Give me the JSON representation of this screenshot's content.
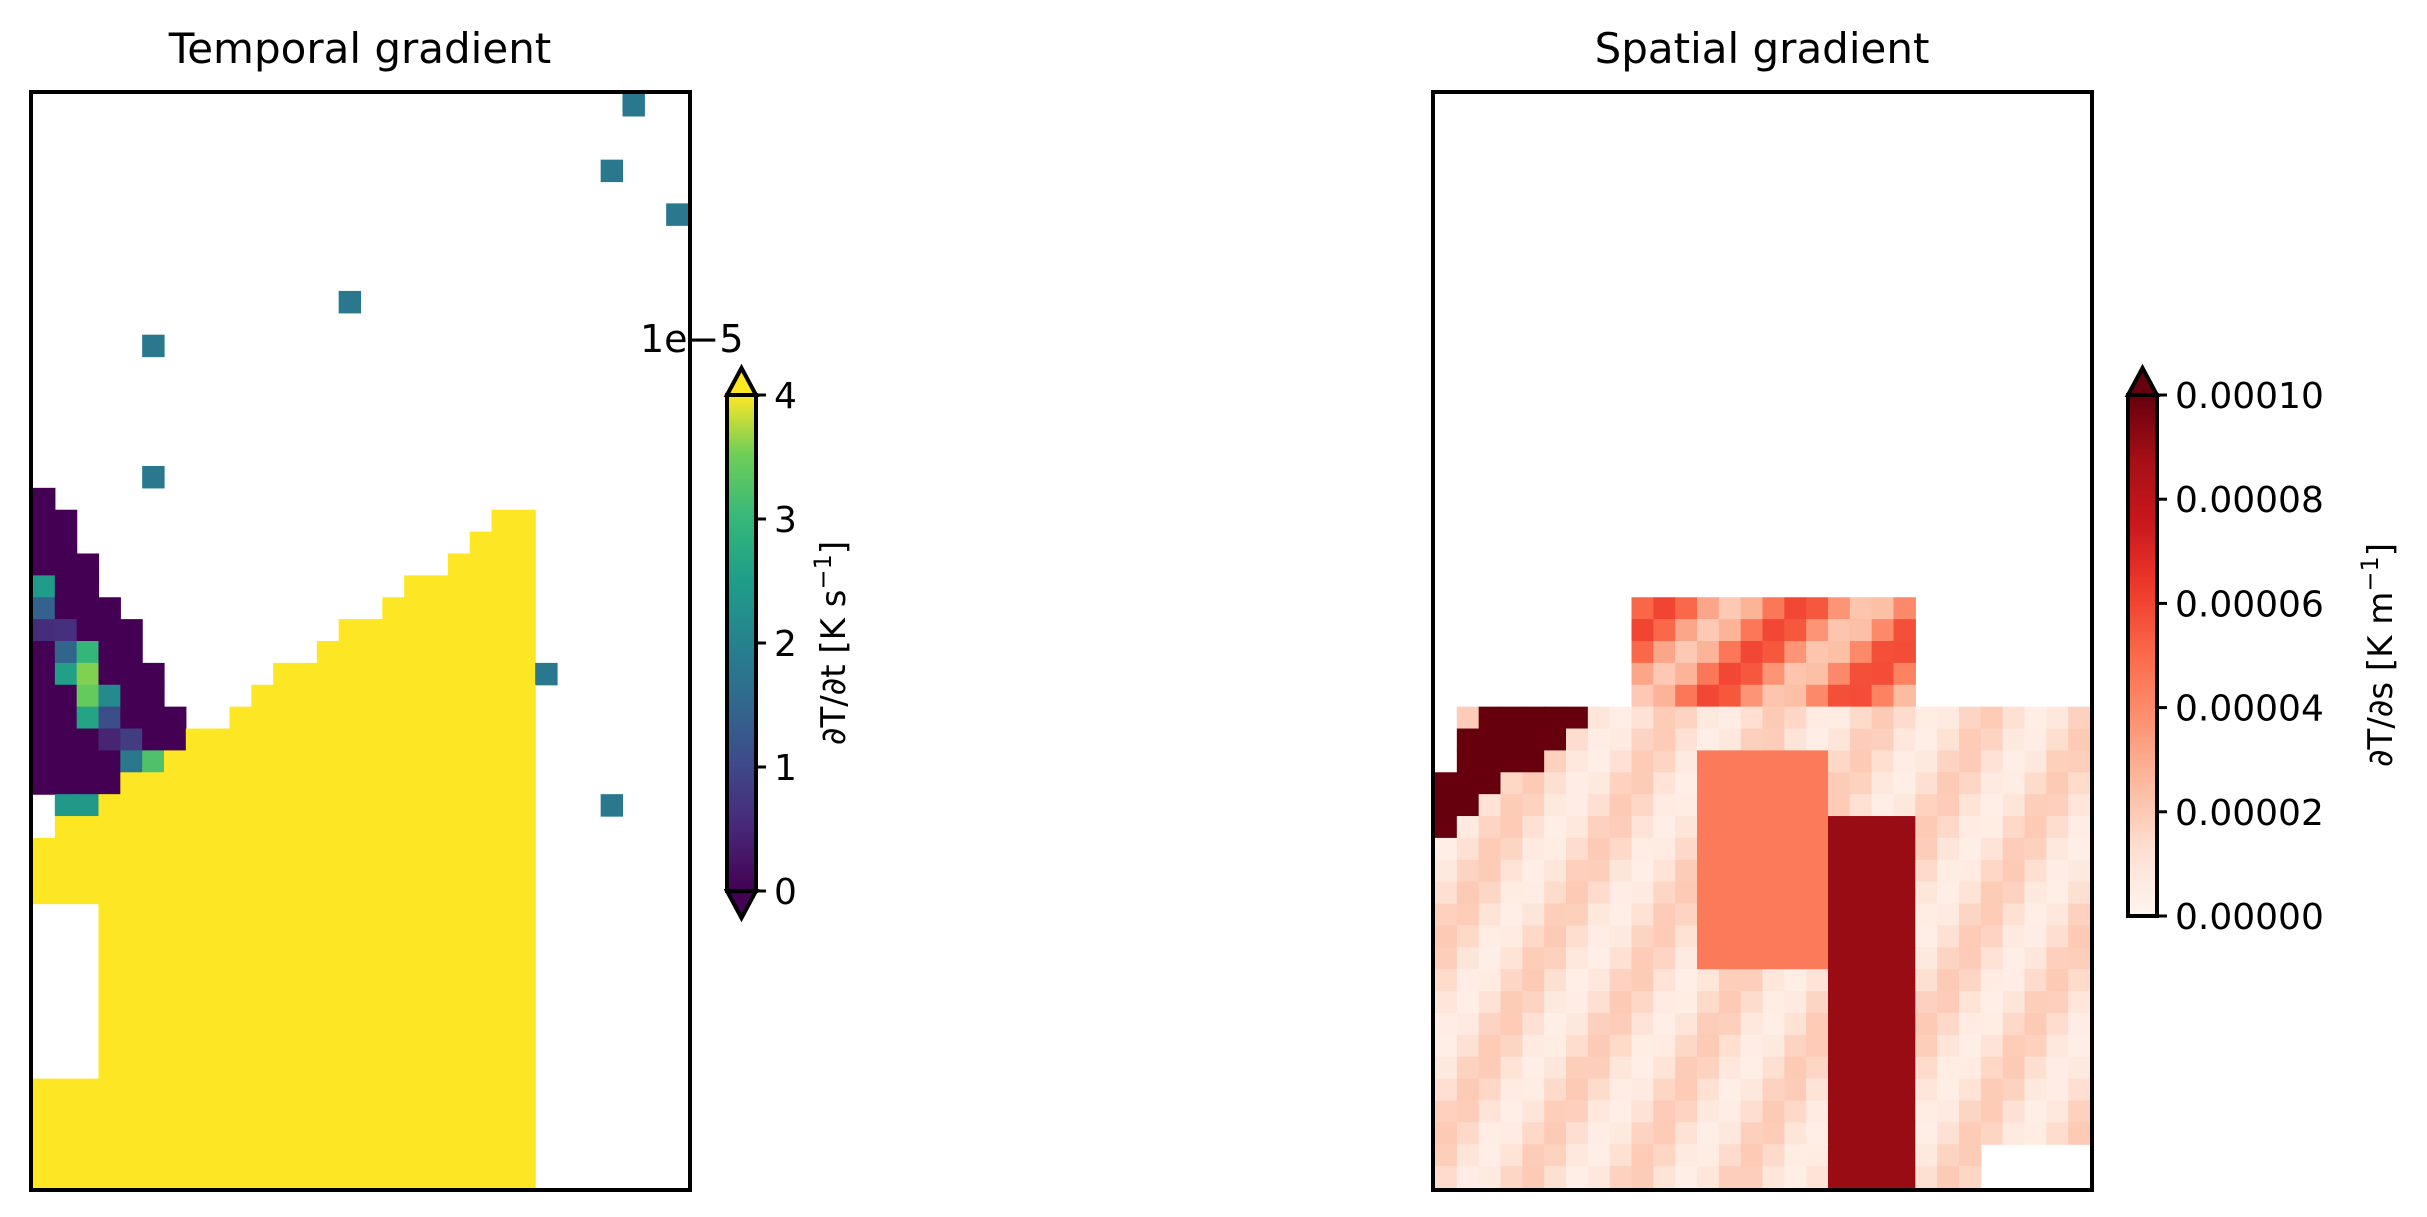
{
  "chart_data": [
    {
      "type": "heatmap",
      "title": "Temporal gradient",
      "colormap": "viridis",
      "grid": false,
      "colorbar": {
        "label_prefix": "∂T/∂t [K s",
        "label_sup": "−1",
        "label_suffix": "]",
        "range": [
          0,
          4
        ],
        "ticks": [
          "0",
          "1",
          "2",
          "3",
          "4"
        ],
        "offset_text": "1e−5",
        "extend": "both"
      },
      "grid_size": [
        30,
        50
      ],
      "legend": "colorbar right"
    },
    {
      "type": "heatmap",
      "title": "Spatial gradient",
      "colormap": "Reds",
      "grid": false,
      "colorbar": {
        "label_prefix": "∂T/∂s [K m",
        "label_sup": "−1",
        "label_suffix": "]",
        "range": [
          0,
          0.0001
        ],
        "ticks": [
          "0.00000",
          "0.00002",
          "0.00004",
          "0.00006",
          "0.00008",
          "0.00010"
        ],
        "extend": "max"
      },
      "grid_size": [
        30,
        50
      ],
      "legend": "colorbar right"
    }
  ]
}
